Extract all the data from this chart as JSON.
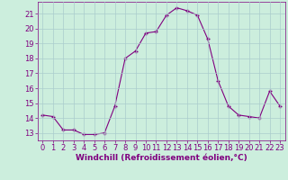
{
  "x": [
    0,
    1,
    2,
    3,
    4,
    5,
    6,
    7,
    8,
    9,
    10,
    11,
    12,
    13,
    14,
    15,
    16,
    17,
    18,
    19,
    20,
    21,
    22,
    23
  ],
  "y": [
    14.2,
    14.1,
    13.2,
    13.2,
    12.9,
    12.9,
    13.0,
    14.8,
    18.0,
    18.5,
    19.7,
    19.8,
    20.9,
    21.4,
    21.2,
    20.9,
    19.3,
    16.5,
    14.8,
    14.2,
    14.1,
    14.0,
    15.8,
    14.8
  ],
  "line_color": "#800080",
  "marker": "+",
  "markersize": 3.5,
  "linewidth": 0.8,
  "xlabel": "Windchill (Refroidissement éolien,°C)",
  "xlabel_fontsize": 6.5,
  "xlim": [
    -0.5,
    23.5
  ],
  "ylim": [
    12.5,
    21.8
  ],
  "yticks": [
    13,
    14,
    15,
    16,
    17,
    18,
    19,
    20,
    21
  ],
  "xticks": [
    0,
    1,
    2,
    3,
    4,
    5,
    6,
    7,
    8,
    9,
    10,
    11,
    12,
    13,
    14,
    15,
    16,
    17,
    18,
    19,
    20,
    21,
    22,
    23
  ],
  "grid_color": "#aacccc",
  "bg_color": "#cceedd",
  "tick_fontsize": 6.0,
  "tick_color": "#800080",
  "label_color": "#800080",
  "spine_color": "#800080"
}
